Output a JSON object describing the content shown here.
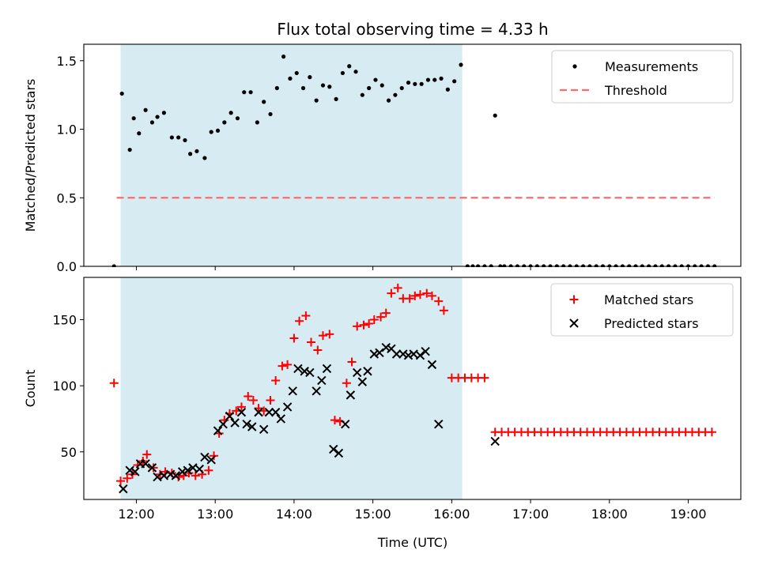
{
  "colors": {
    "shade": "#add8e6",
    "measurement": "#000000",
    "threshold": "#ff6b6b",
    "matched": "#ff0000",
    "predicted": "#000000"
  },
  "chart_data": [
    {
      "type": "scatter",
      "title": "Flux total observing time = 4.33 h",
      "xlabel": "",
      "ylabel": "Matched/Predicted stars",
      "xlim": [
        "11:20",
        "19:40"
      ],
      "ylim": [
        0,
        1.62
      ],
      "yticks": [
        0.0,
        0.5,
        1.0,
        1.5
      ],
      "ytick_labels": [
        "0.0",
        "0.5",
        "1.0",
        "1.5"
      ],
      "shaded_interval": [
        "11:48",
        "16:08"
      ],
      "threshold": {
        "name": "Threshold",
        "value": 0.5,
        "x_start": "11:45",
        "x_end": "19:20",
        "style": "dashed"
      },
      "legend": {
        "position": "top-right",
        "entries": [
          "Measurements",
          "Threshold"
        ]
      },
      "series": [
        {
          "name": "Measurements",
          "marker": "dot",
          "points": [
            [
              "11:43",
              0.0
            ],
            [
              "11:49",
              1.26
            ],
            [
              "11:55",
              0.85
            ],
            [
              "11:58",
              1.08
            ],
            [
              "12:02",
              0.97
            ],
            [
              "12:07",
              1.14
            ],
            [
              "12:12",
              1.05
            ],
            [
              "12:16",
              1.09
            ],
            [
              "12:21",
              1.12
            ],
            [
              "12:27",
              0.94
            ],
            [
              "12:32",
              0.94
            ],
            [
              "12:37",
              0.92
            ],
            [
              "12:41",
              0.82
            ],
            [
              "12:46",
              0.84
            ],
            [
              "12:52",
              0.79
            ],
            [
              "12:57",
              0.98
            ],
            [
              "13:02",
              0.99
            ],
            [
              "13:07",
              1.05
            ],
            [
              "13:12",
              1.12
            ],
            [
              "13:17",
              1.08
            ],
            [
              "13:22",
              1.27
            ],
            [
              "13:27",
              1.27
            ],
            [
              "13:32",
              1.05
            ],
            [
              "13:37",
              1.2
            ],
            [
              "13:42",
              1.11
            ],
            [
              "13:47",
              1.3
            ],
            [
              "13:52",
              1.53
            ],
            [
              "13:57",
              1.37
            ],
            [
              "14:02",
              1.41
            ],
            [
              "14:07",
              1.3
            ],
            [
              "14:12",
              1.38
            ],
            [
              "14:17",
              1.21
            ],
            [
              "14:22",
              1.32
            ],
            [
              "14:27",
              1.31
            ],
            [
              "14:32",
              1.22
            ],
            [
              "14:37",
              1.41
            ],
            [
              "14:42",
              1.46
            ],
            [
              "14:47",
              1.42
            ],
            [
              "14:52",
              1.25
            ],
            [
              "14:57",
              1.3
            ],
            [
              "15:02",
              1.36
            ],
            [
              "15:07",
              1.32
            ],
            [
              "15:12",
              1.21
            ],
            [
              "15:17",
              1.25
            ],
            [
              "15:22",
              1.3
            ],
            [
              "15:27",
              1.34
            ],
            [
              "15:32",
              1.33
            ],
            [
              "15:37",
              1.33
            ],
            [
              "15:42",
              1.36
            ],
            [
              "15:47",
              1.36
            ],
            [
              "15:52",
              1.37
            ],
            [
              "15:57",
              1.29
            ],
            [
              "16:02",
              1.35
            ],
            [
              "16:07",
              1.47
            ],
            [
              "16:12",
              0.0
            ],
            [
              "16:16",
              0.0
            ],
            [
              "16:20",
              0.0
            ],
            [
              "16:25",
              0.0
            ],
            [
              "16:30",
              0.0
            ],
            [
              "16:33",
              1.1
            ],
            [
              "16:37",
              0.0
            ],
            [
              "16:40",
              0.0
            ],
            [
              "16:45",
              0.0
            ],
            [
              "16:50",
              0.0
            ],
            [
              "16:55",
              0.0
            ],
            [
              "17:00",
              0.0
            ],
            [
              "17:05",
              0.0
            ],
            [
              "17:10",
              0.0
            ],
            [
              "17:15",
              0.0
            ],
            [
              "17:20",
              0.0
            ],
            [
              "17:25",
              0.0
            ],
            [
              "17:30",
              0.0
            ],
            [
              "17:35",
              0.0
            ],
            [
              "17:40",
              0.0
            ],
            [
              "17:45",
              0.0
            ],
            [
              "17:50",
              0.0
            ],
            [
              "17:55",
              0.0
            ],
            [
              "18:00",
              0.0
            ],
            [
              "18:05",
              0.0
            ],
            [
              "18:10",
              0.0
            ],
            [
              "18:15",
              0.0
            ],
            [
              "18:20",
              0.0
            ],
            [
              "18:25",
              0.0
            ],
            [
              "18:30",
              0.0
            ],
            [
              "18:35",
              0.0
            ],
            [
              "18:40",
              0.0
            ],
            [
              "18:45",
              0.0
            ],
            [
              "18:50",
              0.0
            ],
            [
              "18:55",
              0.0
            ],
            [
              "19:00",
              0.0
            ],
            [
              "19:05",
              0.0
            ],
            [
              "19:10",
              0.0
            ],
            [
              "19:15",
              0.0
            ],
            [
              "19:20",
              0.0
            ]
          ]
        }
      ]
    },
    {
      "type": "scatter",
      "title": "",
      "xlabel": "Time (UTC)",
      "ylabel": "Count",
      "xlim": [
        "11:20",
        "19:40"
      ],
      "ylim": [
        14,
        182
      ],
      "xticks": [
        "12:00",
        "13:00",
        "14:00",
        "15:00",
        "16:00",
        "17:00",
        "18:00",
        "19:00"
      ],
      "xtick_labels": [
        "12:00",
        "13:00",
        "14:00",
        "15:00",
        "16:00",
        "17:00",
        "18:00",
        "19:00"
      ],
      "yticks": [
        50,
        100,
        150
      ],
      "ytick_labels": [
        "50",
        "100",
        "150"
      ],
      "shaded_interval": [
        "11:48",
        "16:08"
      ],
      "legend": {
        "position": "top-right",
        "entries": [
          "Matched stars",
          "Predicted stars"
        ]
      },
      "series": [
        {
          "name": "Matched stars",
          "marker": "plus",
          "points": [
            [
              "11:43",
              102
            ],
            [
              "11:48",
              28
            ],
            [
              "11:53",
              30
            ],
            [
              "11:57",
              33
            ],
            [
              "12:01",
              40
            ],
            [
              "12:05",
              43
            ],
            [
              "12:08",
              48
            ],
            [
              "12:13",
              38
            ],
            [
              "12:18",
              33
            ],
            [
              "12:22",
              35
            ],
            [
              "12:27",
              34
            ],
            [
              "12:32",
              31
            ],
            [
              "12:36",
              32
            ],
            [
              "12:40",
              34
            ],
            [
              "12:45",
              32
            ],
            [
              "12:50",
              33
            ],
            [
              "12:55",
              36
            ],
            [
              "12:59",
              47
            ],
            [
              "13:03",
              64
            ],
            [
              "13:07",
              74
            ],
            [
              "13:11",
              79
            ],
            [
              "13:16",
              81
            ],
            [
              "13:20",
              84
            ],
            [
              "13:25",
              92
            ],
            [
              "13:29",
              89
            ],
            [
              "13:33",
              83
            ],
            [
              "13:37",
              81
            ],
            [
              "13:42",
              89
            ],
            [
              "13:46",
              104
            ],
            [
              "13:51",
              115
            ],
            [
              "13:55",
              116
            ],
            [
              "14:00",
              136
            ],
            [
              "14:04",
              149
            ],
            [
              "14:09",
              153
            ],
            [
              "14:13",
              133
            ],
            [
              "14:18",
              127
            ],
            [
              "14:22",
              138
            ],
            [
              "14:27",
              139
            ],
            [
              "14:31",
              74
            ],
            [
              "14:35",
              73
            ],
            [
              "14:40",
              102
            ],
            [
              "14:44",
              118
            ],
            [
              "14:48",
              145
            ],
            [
              "14:53",
              146
            ],
            [
              "14:57",
              147
            ],
            [
              "15:01",
              150
            ],
            [
              "15:06",
              152
            ],
            [
              "15:10",
              155
            ],
            [
              "15:14",
              170
            ],
            [
              "15:19",
              174
            ],
            [
              "15:23",
              166
            ],
            [
              "15:28",
              166
            ],
            [
              "15:32",
              168
            ],
            [
              "15:36",
              169
            ],
            [
              "15:41",
              170
            ],
            [
              "15:45",
              168
            ],
            [
              "15:50",
              164
            ],
            [
              "15:54",
              157
            ],
            [
              "16:00",
              106
            ],
            [
              "16:05",
              106
            ],
            [
              "16:10",
              106
            ],
            [
              "16:15",
              106
            ],
            [
              "16:20",
              106
            ],
            [
              "16:25",
              106
            ],
            [
              "16:33",
              65
            ],
            [
              "16:38",
              65
            ],
            [
              "16:43",
              65
            ],
            [
              "16:48",
              65
            ],
            [
              "16:53",
              65
            ],
            [
              "16:58",
              65
            ],
            [
              "17:03",
              65
            ],
            [
              "17:08",
              65
            ],
            [
              "17:13",
              65
            ],
            [
              "17:18",
              65
            ],
            [
              "17:23",
              65
            ],
            [
              "17:28",
              65
            ],
            [
              "17:33",
              65
            ],
            [
              "17:38",
              65
            ],
            [
              "17:43",
              65
            ],
            [
              "17:48",
              65
            ],
            [
              "17:53",
              65
            ],
            [
              "17:58",
              65
            ],
            [
              "18:03",
              65
            ],
            [
              "18:08",
              65
            ],
            [
              "18:13",
              65
            ],
            [
              "18:18",
              65
            ],
            [
              "18:23",
              65
            ],
            [
              "18:28",
              65
            ],
            [
              "18:33",
              65
            ],
            [
              "18:38",
              65
            ],
            [
              "18:43",
              65
            ],
            [
              "18:48",
              65
            ],
            [
              "18:53",
              65
            ],
            [
              "18:58",
              65
            ],
            [
              "19:03",
              65
            ],
            [
              "19:08",
              65
            ],
            [
              "19:13",
              65
            ],
            [
              "19:18",
              65
            ]
          ]
        },
        {
          "name": "Predicted stars",
          "marker": "x",
          "points": [
            [
              "11:50",
              22
            ],
            [
              "11:55",
              36
            ],
            [
              "11:59",
              35
            ],
            [
              "12:03",
              41
            ],
            [
              "12:07",
              41
            ],
            [
              "12:12",
              38
            ],
            [
              "12:16",
              31
            ],
            [
              "12:21",
              32
            ],
            [
              "12:26",
              33
            ],
            [
              "12:30",
              32
            ],
            [
              "12:35",
              35
            ],
            [
              "12:39",
              36
            ],
            [
              "12:43",
              38
            ],
            [
              "12:48",
              37
            ],
            [
              "12:52",
              46
            ],
            [
              "12:57",
              44
            ],
            [
              "13:02",
              66
            ],
            [
              "13:06",
              71
            ],
            [
              "13:11",
              77
            ],
            [
              "13:15",
              72
            ],
            [
              "13:20",
              80
            ],
            [
              "13:24",
              71
            ],
            [
              "13:28",
              69
            ],
            [
              "13:33",
              80
            ],
            [
              "13:37",
              67
            ],
            [
              "13:41",
              80
            ],
            [
              "13:46",
              80
            ],
            [
              "13:50",
              75
            ],
            [
              "13:55",
              84
            ],
            [
              "13:59",
              96
            ],
            [
              "14:03",
              113
            ],
            [
              "14:08",
              111
            ],
            [
              "14:12",
              110
            ],
            [
              "14:17",
              96
            ],
            [
              "14:21",
              104
            ],
            [
              "14:25",
              113
            ],
            [
              "14:30",
              52
            ],
            [
              "14:34",
              49
            ],
            [
              "14:39",
              71
            ],
            [
              "14:43",
              93
            ],
            [
              "14:48",
              110
            ],
            [
              "14:52",
              103
            ],
            [
              "14:56",
              111
            ],
            [
              "15:01",
              124
            ],
            [
              "15:05",
              125
            ],
            [
              "15:10",
              129
            ],
            [
              "15:14",
              128
            ],
            [
              "15:18",
              124
            ],
            [
              "15:23",
              124
            ],
            [
              "15:27",
              123
            ],
            [
              "15:31",
              124
            ],
            [
              "15:36",
              123
            ],
            [
              "15:40",
              126
            ],
            [
              "15:45",
              116
            ],
            [
              "15:50",
              71
            ],
            [
              "16:33",
              58
            ]
          ]
        }
      ]
    }
  ]
}
